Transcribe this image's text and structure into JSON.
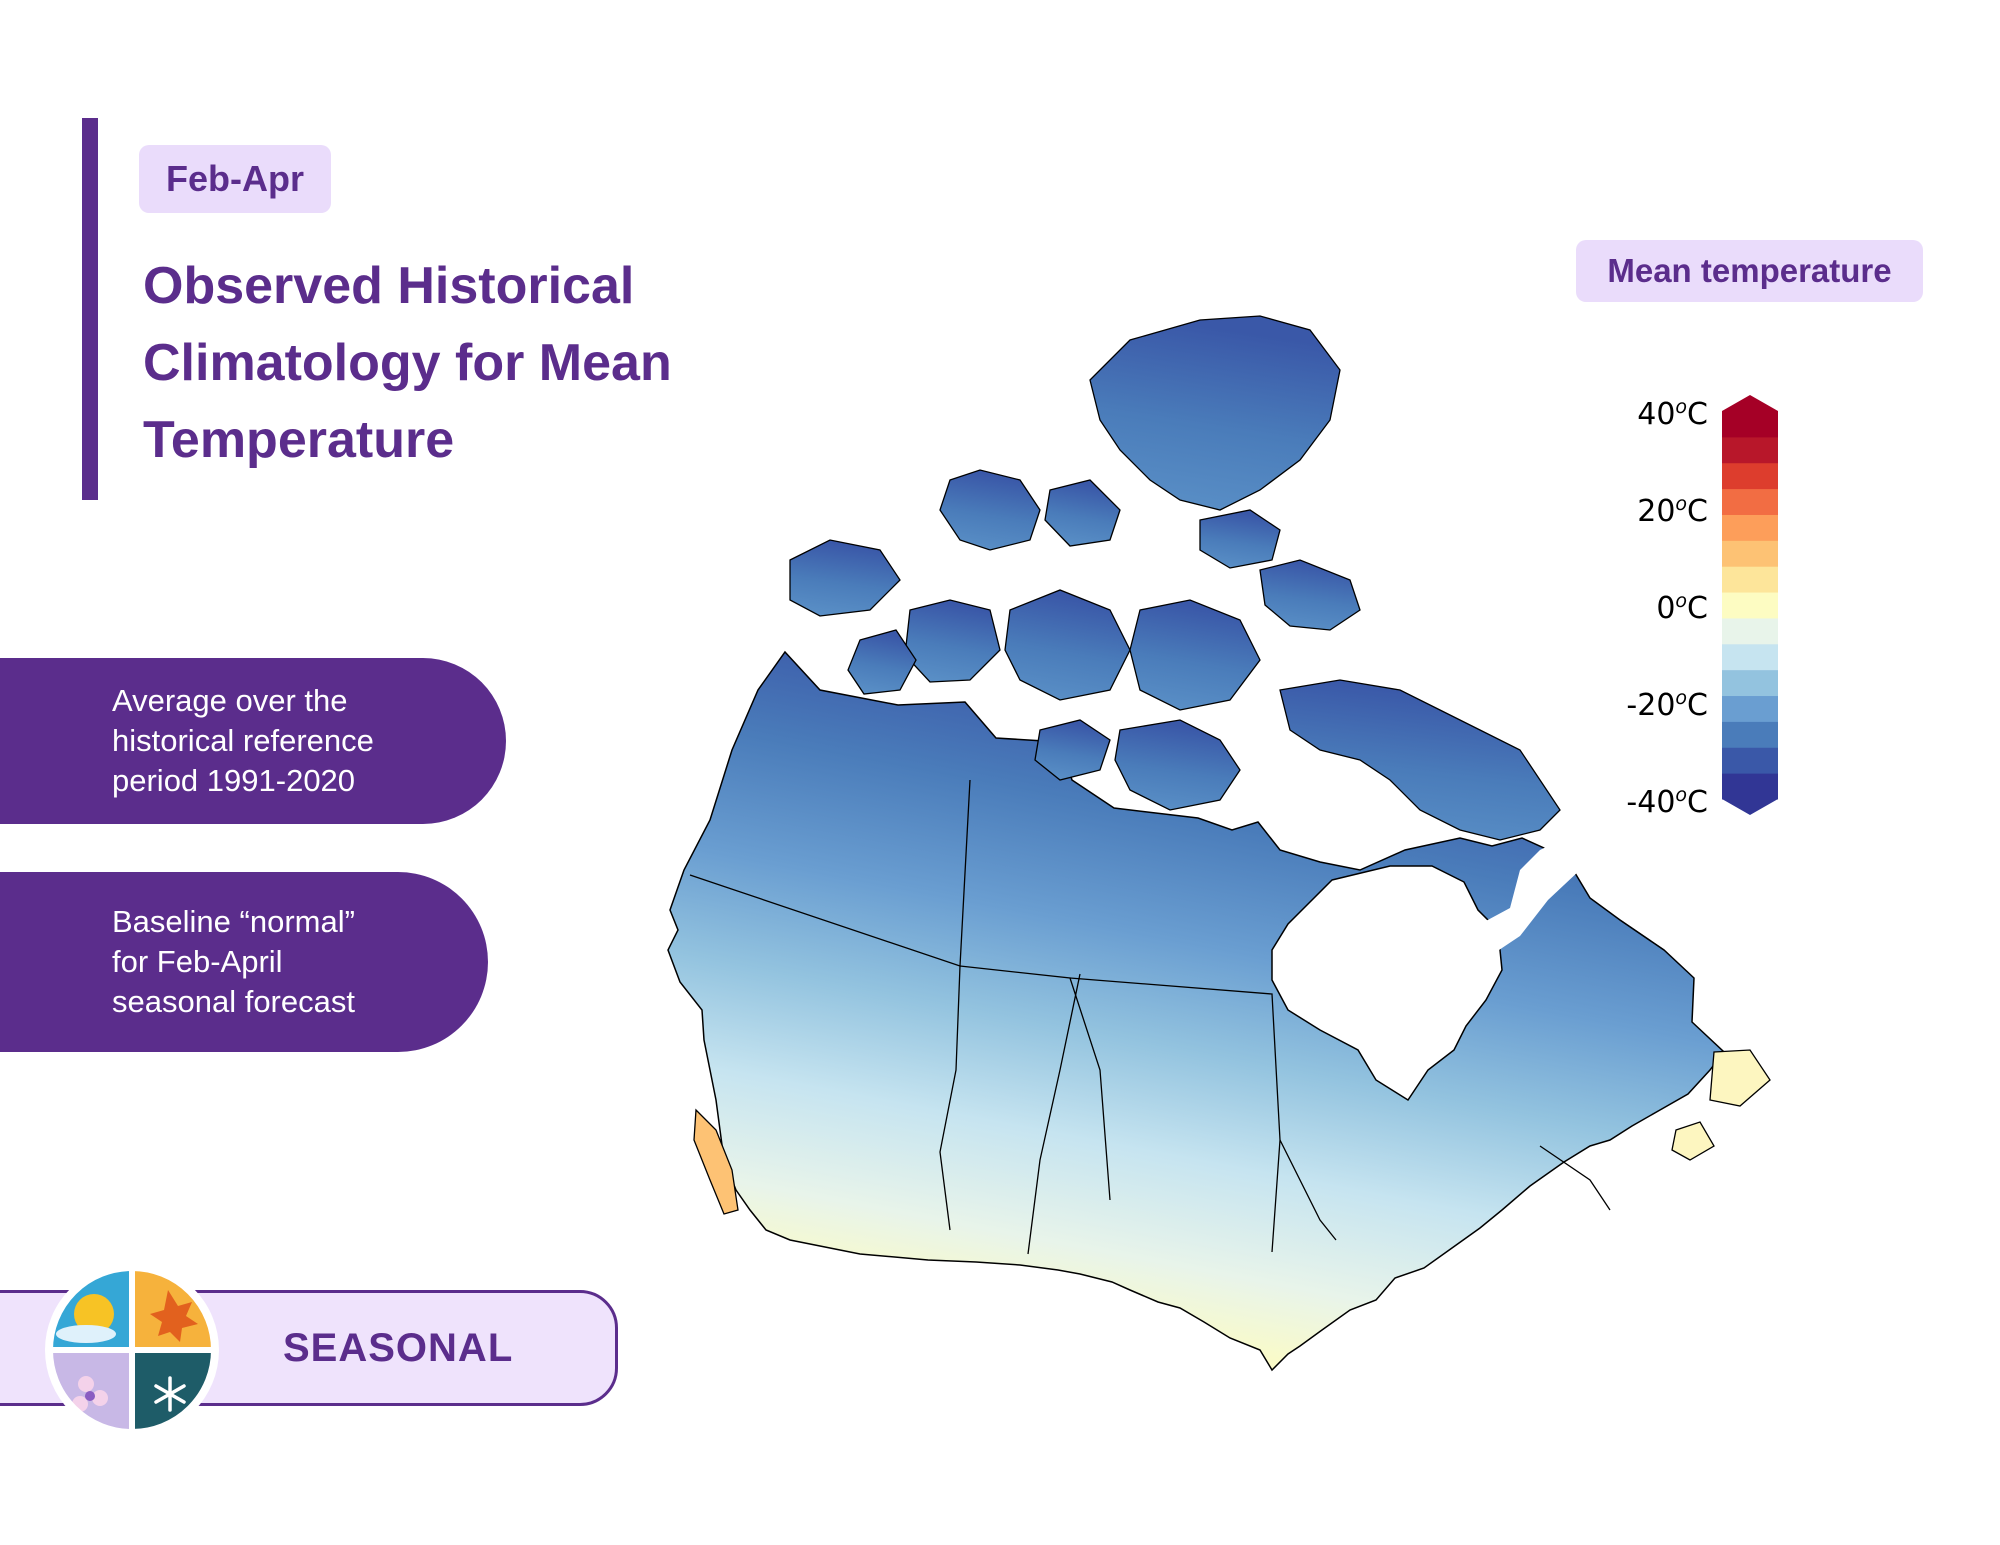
{
  "header": {
    "season_tag": "Feb-Apr",
    "title_lines": [
      "Observed Historical",
      "Climatology for Mean",
      "Temperature"
    ]
  },
  "info_boxes": [
    {
      "lines": [
        "Average over the",
        "historical reference",
        "period 1991-2020"
      ]
    },
    {
      "lines": [
        "Baseline “normal”",
        "for Feb-April",
        "seasonal forecast"
      ]
    }
  ],
  "footer": {
    "label": "SEASONAL"
  },
  "legend": {
    "title": "Mean temperature",
    "ticks": [
      {
        "value": "40",
        "unit": "C"
      },
      {
        "value": "20",
        "unit": "C"
      },
      {
        "value": "0",
        "unit": "C"
      },
      {
        "value": "-20",
        "unit": "C"
      },
      {
        "value": "-40",
        "unit": "C"
      }
    ],
    "degree_symbol": "o",
    "range": [
      -40,
      40
    ],
    "colors": [
      "#313695",
      "#3a58a8",
      "#4a7cba",
      "#6a9ed1",
      "#93c3df",
      "#c6e4f0",
      "#e8f4ea",
      "#fdfcc2",
      "#fde59a",
      "#fdc274",
      "#fd9e5a",
      "#f26d43",
      "#dd3d2d",
      "#b8172a",
      "#a50026"
    ]
  },
  "colors": {
    "accent": "#5b2d8c",
    "accent_light": "#eadcfb"
  },
  "icons": [
    "summer-sun-icon",
    "autumn-leaf-icon",
    "spring-flower-icon",
    "winter-snowflake-icon"
  ]
}
